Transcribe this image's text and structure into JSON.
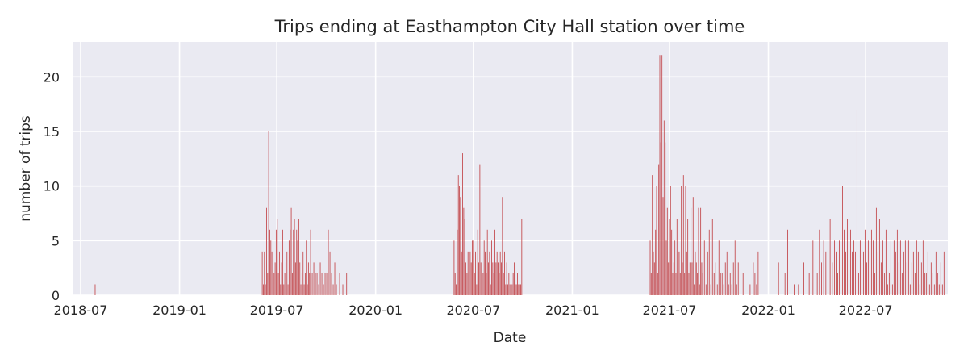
{
  "chart_data": {
    "type": "bar",
    "title": "Trips ending at Easthampton City Hall station over time",
    "xlabel": "Date",
    "ylabel": "number of trips",
    "x_ticks": [
      "2018-07",
      "2019-01",
      "2019-07",
      "2020-01",
      "2020-07",
      "2021-01",
      "2021-07",
      "2022-01",
      "2022-07"
    ],
    "y_ticks": [
      0,
      5,
      10,
      15,
      20
    ],
    "xlim": [
      "2018-06-16",
      "2022-12-01"
    ],
    "ylim": [
      0,
      23.2
    ],
    "grid": true,
    "bar_color": "#c44e52",
    "background_color": "#eaeaf2",
    "series": [
      {
        "dates": [
          "2018-07-28",
          "2019-06-04",
          "2019-06-06",
          "2019-06-08",
          "2019-06-10",
          "2019-06-12",
          "2019-06-14",
          "2019-06-16",
          "2019-06-18",
          "2019-06-20",
          "2019-06-22",
          "2019-06-24",
          "2019-06-26",
          "2019-06-28",
          "2019-06-30",
          "2019-07-02",
          "2019-07-04",
          "2019-07-06",
          "2019-07-08",
          "2019-07-10",
          "2019-07-12",
          "2019-07-14",
          "2019-07-16",
          "2019-07-18",
          "2019-07-20",
          "2019-07-22",
          "2019-07-24",
          "2019-07-26",
          "2019-07-28",
          "2019-07-30",
          "2019-08-01",
          "2019-08-03",
          "2019-08-05",
          "2019-08-07",
          "2019-08-09",
          "2019-08-11",
          "2019-08-13",
          "2019-08-15",
          "2019-08-17",
          "2019-08-19",
          "2019-08-21",
          "2019-08-23",
          "2019-08-25",
          "2019-08-27",
          "2019-08-29",
          "2019-08-31",
          "2019-09-02",
          "2019-09-05",
          "2019-09-08",
          "2019-09-11",
          "2019-09-14",
          "2019-09-17",
          "2019-09-20",
          "2019-09-23",
          "2019-09-26",
          "2019-09-29",
          "2019-10-02",
          "2019-10-05",
          "2019-10-08",
          "2019-10-11",
          "2019-10-14",
          "2019-10-17",
          "2019-10-20",
          "2019-10-26",
          "2019-11-01",
          "2019-11-08",
          "2020-05-26",
          "2020-05-28",
          "2020-05-30",
          "2020-06-01",
          "2020-06-03",
          "2020-06-05",
          "2020-06-07",
          "2020-06-09",
          "2020-06-11",
          "2020-06-13",
          "2020-06-15",
          "2020-06-17",
          "2020-06-19",
          "2020-06-21",
          "2020-06-23",
          "2020-06-25",
          "2020-06-27",
          "2020-06-29",
          "2020-07-01",
          "2020-07-03",
          "2020-07-05",
          "2020-07-07",
          "2020-07-09",
          "2020-07-11",
          "2020-07-13",
          "2020-07-15",
          "2020-07-17",
          "2020-07-19",
          "2020-07-21",
          "2020-07-23",
          "2020-07-25",
          "2020-07-27",
          "2020-07-29",
          "2020-07-31",
          "2020-08-02",
          "2020-08-04",
          "2020-08-06",
          "2020-08-08",
          "2020-08-10",
          "2020-08-12",
          "2020-08-14",
          "2020-08-16",
          "2020-08-18",
          "2020-08-20",
          "2020-08-22",
          "2020-08-24",
          "2020-08-26",
          "2020-08-28",
          "2020-08-30",
          "2020-09-01",
          "2020-09-03",
          "2020-09-05",
          "2020-09-07",
          "2020-09-09",
          "2020-09-11",
          "2020-09-13",
          "2020-09-15",
          "2020-09-17",
          "2020-09-19",
          "2020-09-21",
          "2020-09-23",
          "2020-09-25",
          "2020-09-27",
          "2020-09-29",
          "2021-05-26",
          "2021-05-28",
          "2021-05-30",
          "2021-06-01",
          "2021-06-03",
          "2021-06-05",
          "2021-06-07",
          "2021-06-09",
          "2021-06-11",
          "2021-06-13",
          "2021-06-15",
          "2021-06-17",
          "2021-06-19",
          "2021-06-21",
          "2021-06-23",
          "2021-06-25",
          "2021-06-27",
          "2021-06-29",
          "2021-07-01",
          "2021-07-03",
          "2021-07-05",
          "2021-07-07",
          "2021-07-09",
          "2021-07-11",
          "2021-07-13",
          "2021-07-15",
          "2021-07-17",
          "2021-07-19",
          "2021-07-21",
          "2021-07-23",
          "2021-07-25",
          "2021-07-27",
          "2021-07-29",
          "2021-07-31",
          "2021-08-02",
          "2021-08-04",
          "2021-08-06",
          "2021-08-08",
          "2021-08-10",
          "2021-08-12",
          "2021-08-14",
          "2021-08-16",
          "2021-08-18",
          "2021-08-20",
          "2021-08-22",
          "2021-08-24",
          "2021-08-26",
          "2021-08-28",
          "2021-08-30",
          "2021-09-01",
          "2021-09-04",
          "2021-09-07",
          "2021-09-10",
          "2021-09-13",
          "2021-09-16",
          "2021-09-19",
          "2021-09-22",
          "2021-09-25",
          "2021-09-28",
          "2021-10-01",
          "2021-10-04",
          "2021-10-07",
          "2021-10-10",
          "2021-10-13",
          "2021-10-16",
          "2021-10-19",
          "2021-10-22",
          "2021-10-25",
          "2021-10-28",
          "2021-10-31",
          "2021-11-03",
          "2021-11-06",
          "2021-11-15",
          "2021-11-28",
          "2021-12-04",
          "2021-12-07",
          "2021-12-10",
          "2021-12-13",
          "2022-01-20",
          "2022-02-01",
          "2022-02-06",
          "2022-02-18",
          "2022-02-26",
          "2022-03-08",
          "2022-03-18",
          "2022-03-25",
          "2022-04-02",
          "2022-04-06",
          "2022-04-10",
          "2022-04-14",
          "2022-04-18",
          "2022-04-22",
          "2022-04-26",
          "2022-04-30",
          "2022-05-04",
          "2022-05-07",
          "2022-05-10",
          "2022-05-13",
          "2022-05-16",
          "2022-05-19",
          "2022-05-22",
          "2022-05-25",
          "2022-05-28",
          "2022-05-31",
          "2022-06-03",
          "2022-06-06",
          "2022-06-09",
          "2022-06-12",
          "2022-06-15",
          "2022-06-18",
          "2022-06-21",
          "2022-06-24",
          "2022-06-27",
          "2022-06-30",
          "2022-07-03",
          "2022-07-06",
          "2022-07-09",
          "2022-07-12",
          "2022-07-15",
          "2022-07-18",
          "2022-07-21",
          "2022-07-24",
          "2022-07-27",
          "2022-07-30",
          "2022-08-02",
          "2022-08-05",
          "2022-08-08",
          "2022-08-11",
          "2022-08-14",
          "2022-08-17",
          "2022-08-20",
          "2022-08-23",
          "2022-08-26",
          "2022-08-29",
          "2022-09-01",
          "2022-09-04",
          "2022-09-07",
          "2022-09-10",
          "2022-09-13",
          "2022-09-16",
          "2022-09-19",
          "2022-09-22",
          "2022-09-25",
          "2022-09-28",
          "2022-10-01",
          "2022-10-04",
          "2022-10-07",
          "2022-10-10",
          "2022-10-13",
          "2022-10-16",
          "2022-10-19",
          "2022-10-22",
          "2022-10-25",
          "2022-10-28",
          "2022-10-31",
          "2022-11-03",
          "2022-11-06",
          "2022-11-09",
          "2022-11-12",
          "2022-11-15",
          "2022-11-18",
          "2022-11-21",
          "2022-11-24"
        ],
        "values": [
          1,
          4,
          1,
          4,
          1,
          8,
          2,
          15,
          6,
          5,
          4,
          6,
          2,
          3,
          6,
          7,
          2,
          4,
          1,
          3,
          6,
          1,
          2,
          3,
          4,
          1,
          5,
          6,
          8,
          2,
          6,
          7,
          3,
          6,
          5,
          7,
          3,
          1,
          2,
          4,
          1,
          2,
          5,
          1,
          3,
          2,
          6,
          2,
          3,
          2,
          2,
          1,
          3,
          2,
          1,
          2,
          2,
          6,
          4,
          2,
          1,
          3,
          1,
          2,
          1,
          2,
          5,
          2,
          1,
          6,
          11,
          10,
          9,
          4,
          13,
          8,
          7,
          3,
          2,
          4,
          1,
          4,
          3,
          5,
          5,
          2,
          4,
          1,
          6,
          3,
          12,
          3,
          10,
          2,
          5,
          4,
          2,
          6,
          3,
          4,
          1,
          5,
          3,
          2,
          6,
          3,
          4,
          3,
          2,
          4,
          3,
          9,
          2,
          4,
          1,
          3,
          1,
          2,
          1,
          4,
          1,
          2,
          3,
          1,
          1,
          2,
          1,
          1,
          1,
          7,
          5,
          2,
          11,
          4,
          3,
          6,
          10,
          2,
          12,
          22,
          14,
          22,
          9,
          16,
          14,
          5,
          8,
          3,
          7,
          10,
          6,
          2,
          3,
          5,
          2,
          7,
          4,
          4,
          2,
          10,
          3,
          11,
          2,
          10,
          4,
          7,
          2,
          3,
          8,
          3,
          9,
          1,
          4,
          3,
          2,
          8,
          1,
          8,
          3,
          2,
          5,
          1,
          4,
          6,
          1,
          7,
          2,
          3,
          1,
          5,
          2,
          2,
          1,
          3,
          4,
          1,
          2,
          1,
          3,
          5,
          1,
          3,
          2,
          1,
          3,
          2,
          1,
          4,
          3,
          2,
          6,
          1,
          1,
          3,
          2,
          5,
          2,
          6,
          3,
          5,
          4,
          1,
          7,
          3,
          5,
          4,
          2,
          5,
          13,
          10,
          6,
          4,
          7,
          3,
          6,
          4,
          5,
          4,
          17,
          2,
          5,
          3,
          4,
          6,
          3,
          5,
          4,
          6,
          5,
          2,
          8,
          4,
          7,
          3,
          5,
          2,
          6,
          1,
          2,
          5,
          1,
          5,
          4,
          6,
          3,
          5,
          2,
          4,
          5,
          3,
          5,
          1,
          3,
          4,
          2,
          5,
          4,
          1,
          3,
          5,
          2,
          2,
          4,
          1,
          3,
          2,
          1,
          4,
          2,
          1,
          3,
          1,
          4
        ]
      }
    ]
  }
}
